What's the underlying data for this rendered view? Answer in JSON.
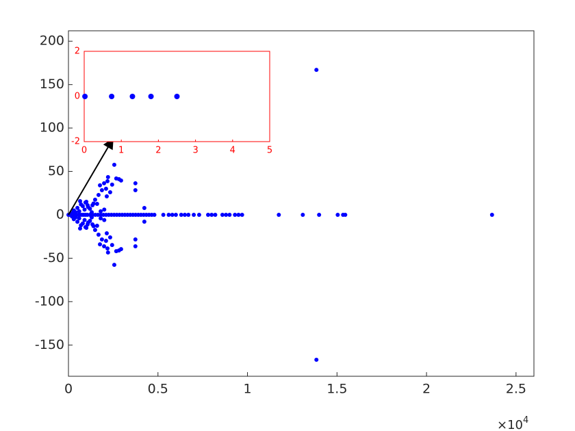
{
  "chart_data": [
    {
      "type": "scatter",
      "color": "#0000ff",
      "x": [
        0,
        80,
        160,
        250,
        350,
        450,
        550,
        650,
        750,
        850,
        950,
        1050,
        1200,
        1350,
        1500,
        1650,
        1800,
        1950,
        2100,
        2250,
        2400,
        2550,
        2700,
        2850,
        3000,
        3150,
        3300,
        3450,
        3600,
        3750,
        3900,
        4050,
        4200,
        4350,
        4500,
        4650,
        4800,
        5300,
        5600,
        5800,
        6000,
        6300,
        6500,
        6700,
        7000,
        7300,
        7800,
        8000,
        8200,
        8600,
        8800,
        9000,
        9300,
        9500,
        9700,
        11750,
        13090,
        14000,
        15040,
        15340,
        15460,
        23660,
        2560,
        2670,
        2820,
        2940,
        2210,
        2180,
        2440,
        1760,
        1990,
        3740,
        3740,
        1870,
        2100,
        2330,
        1680,
        1490,
        2140,
        4240,
        950,
        650,
        1070,
        1340,
        1600,
        300,
        500,
        700,
        900,
        1100,
        400,
        600,
        800,
        1000,
        1200,
        1400,
        200,
        1800,
        2000,
        1300,
        2560,
        2670,
        2820,
        2940,
        2210,
        2180,
        2440,
        1760,
        1990,
        3740,
        3740,
        1870,
        2100,
        2330,
        1680,
        1490,
        2140,
        4240,
        950,
        650,
        1070,
        1340,
        1600,
        300,
        500,
        700,
        900,
        1100,
        400,
        600,
        800,
        1000,
        1200,
        1400,
        200,
        1800,
        2000,
        1300,
        13850,
        13850
      ],
      "values": [
        0,
        0,
        0,
        0,
        0,
        0,
        0,
        0,
        0,
        0,
        0,
        0,
        0,
        0,
        0,
        0,
        0,
        0,
        0,
        0,
        0,
        0,
        0,
        0,
        0,
        0,
        0,
        0,
        0,
        0,
        0,
        0,
        0,
        0,
        0,
        0,
        0,
        0,
        0,
        0,
        0,
        0,
        0,
        0,
        0,
        0,
        0,
        0,
        0,
        0,
        0,
        0,
        0,
        0,
        0,
        0,
        0,
        0,
        0,
        0,
        0,
        0,
        57.6,
        41.9,
        41.1,
        39.5,
        43.4,
        38.7,
        34.8,
        34,
        36.3,
        36.3,
        28.4,
        28.4,
        30,
        26,
        22.9,
        17.4,
        21.3,
        7.9,
        14.2,
        15.8,
        11,
        11,
        12.6,
        5,
        8,
        12,
        6,
        9,
        3,
        4,
        10,
        15,
        7,
        13,
        2,
        4,
        6,
        3,
        -57.6,
        -41.9,
        -41.1,
        -39.5,
        -43.4,
        -38.7,
        -34.8,
        -34,
        -36.3,
        -36.3,
        -28.4,
        -28.4,
        -30,
        -26,
        -22.9,
        -17.4,
        -21.3,
        -7.9,
        -14.2,
        -15.8,
        -11,
        -11,
        -12.6,
        -5,
        -8,
        -12,
        -6,
        -9,
        -3,
        -4,
        -10,
        -15,
        -7,
        -13,
        -2,
        -4,
        -6,
        -3,
        167,
        -167
      ],
      "xlim": [
        0,
        26000
      ],
      "xticks": [
        0,
        {
          "value": 5000,
          "label": "0.5"
        },
        {
          "value": 10000,
          "label": "1"
        },
        {
          "value": 15000,
          "label": "1.5"
        },
        {
          "value": 20000,
          "label": "2"
        },
        {
          "value": 25000,
          "label": "2.5"
        }
      ],
      "x_multiplier": {
        "base": "×10",
        "power": "4"
      },
      "ylim": [
        -186,
        212
      ],
      "yticks": [
        -150,
        -100,
        -50,
        0,
        50,
        100,
        150,
        200
      ]
    },
    {
      "type": "scatter",
      "color": "#0000ff",
      "axis_color": "#ff0000",
      "x": [
        0.02,
        0.74,
        1.3,
        1.8,
        2.5
      ],
      "values": [
        0,
        0,
        0,
        0,
        0
      ],
      "xlim": [
        0,
        5
      ],
      "xticks": [
        0,
        1,
        2,
        3,
        4,
        5
      ],
      "ylim": [
        -2,
        2
      ],
      "yticks": [
        -2,
        0,
        2
      ]
    }
  ]
}
